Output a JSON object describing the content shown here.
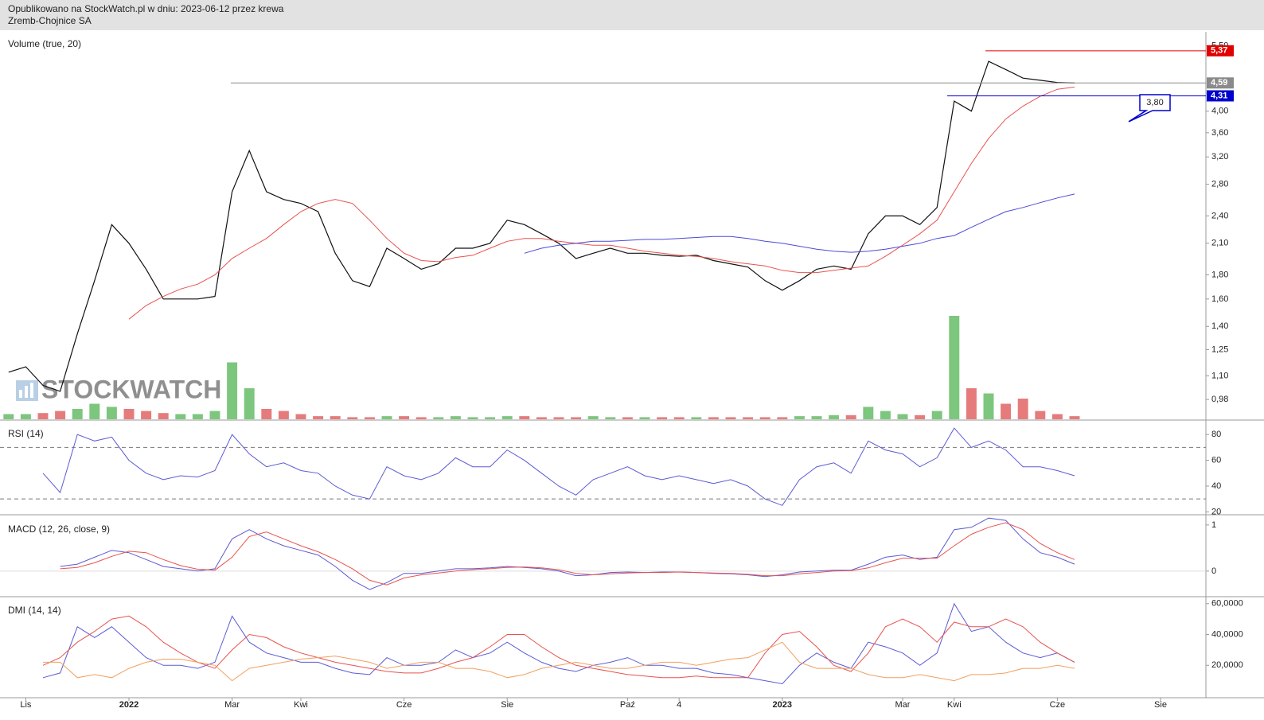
{
  "header": {
    "line1": "Opublikowano na StockWatch.pl w dniu: 2023-06-12 przez krewa",
    "line2": "Zremb-Chojnice SA"
  },
  "chart_data": [
    {
      "type": "line",
      "title": "Volume (true, 20)",
      "log_scale": true,
      "ylim": [
        0.89,
        5.89
      ],
      "yticks": [
        {
          "value": 5.5,
          "label": "5,50"
        },
        {
          "value": 4.0,
          "label": "4,00"
        },
        {
          "value": 3.6,
          "label": "3,60"
        },
        {
          "value": 3.2,
          "label": "3,20"
        },
        {
          "value": 2.8,
          "label": "2,80"
        },
        {
          "value": 2.4,
          "label": "2,40"
        },
        {
          "value": 2.1,
          "label": "2,10"
        },
        {
          "value": 1.8,
          "label": "1,80"
        },
        {
          "value": 1.6,
          "label": "1,60"
        },
        {
          "value": 1.4,
          "label": "1,40"
        },
        {
          "value": 1.25,
          "label": "1,25"
        },
        {
          "value": 1.1,
          "label": "1,10"
        },
        {
          "value": 0.98,
          "label": "0,98"
        }
      ],
      "series": [
        {
          "color": "#111111",
          "values": [
            1.12,
            1.15,
            1.05,
            1.02,
            1.35,
            1.75,
            2.3,
            2.1,
            1.85,
            1.6,
            1.6,
            1.6,
            1.62,
            2.7,
            3.3,
            2.7,
            2.6,
            2.55,
            2.45,
            2.0,
            1.75,
            1.7,
            2.05,
            1.95,
            1.85,
            1.9,
            2.05,
            2.05,
            2.1,
            2.35,
            2.3,
            2.2,
            2.1,
            1.95,
            2.0,
            2.05,
            2.0,
            2.0,
            1.98,
            1.97,
            1.98,
            1.93,
            1.9,
            1.87,
            1.75,
            1.67,
            1.75,
            1.85,
            1.88,
            1.85,
            2.2,
            2.4,
            2.4,
            2.3,
            2.5,
            4.2,
            4.0,
            5.1,
            4.9,
            4.7,
            4.65,
            4.6,
            4.59,
            null,
            null,
            null,
            null,
            null,
            null,
            null
          ]
        },
        {
          "color": "#e8534f",
          "values": [
            null,
            null,
            null,
            null,
            null,
            null,
            null,
            1.45,
            1.55,
            1.62,
            1.68,
            1.72,
            1.8,
            1.95,
            2.05,
            2.15,
            2.3,
            2.45,
            2.55,
            2.6,
            2.55,
            2.35,
            2.15,
            2.0,
            1.93,
            1.92,
            1.96,
            1.98,
            2.05,
            2.12,
            2.15,
            2.15,
            2.12,
            2.1,
            2.08,
            2.08,
            2.05,
            2.02,
            2.0,
            1.98,
            1.97,
            1.95,
            1.92,
            1.9,
            1.88,
            1.84,
            1.82,
            1.82,
            1.84,
            1.86,
            1.88,
            1.97,
            2.08,
            2.2,
            2.35,
            2.7,
            3.1,
            3.5,
            3.85,
            4.1,
            4.3,
            4.45,
            4.5,
            null,
            null,
            null,
            null,
            null,
            null,
            null
          ]
        },
        {
          "color": "#4a4ad8",
          "values": [
            null,
            null,
            null,
            null,
            null,
            null,
            null,
            null,
            null,
            null,
            null,
            null,
            null,
            null,
            null,
            null,
            null,
            null,
            null,
            null,
            null,
            null,
            null,
            null,
            null,
            null,
            null,
            null,
            null,
            null,
            2.0,
            2.05,
            2.08,
            2.1,
            2.12,
            2.12,
            2.13,
            2.14,
            2.14,
            2.15,
            2.16,
            2.17,
            2.17,
            2.15,
            2.12,
            2.1,
            2.07,
            2.04,
            2.02,
            2.01,
            2.02,
            2.04,
            2.07,
            2.1,
            2.15,
            2.18,
            2.27,
            2.36,
            2.45,
            2.5,
            2.56,
            2.62,
            2.67,
            null,
            null,
            null,
            null,
            null,
            null,
            null
          ]
        }
      ],
      "levels": [
        {
          "value": 5.37,
          "label": "5,37",
          "color": "#e00000"
        },
        {
          "value": 4.59,
          "label": "4,59",
          "color": "#8a8a8a"
        },
        {
          "value": 4.31,
          "label": "4,31",
          "color": "#0000cc"
        }
      ],
      "annotation": {
        "value": 3.8,
        "label": "3,80",
        "color": "#0000cc"
      },
      "watermark": "STOCKWATCH"
    },
    {
      "type": "bar",
      "ylim": [
        0,
        100
      ],
      "up_color": "#5cb85c",
      "down_color": "#e05a5a",
      "values": [
        5,
        5,
        6,
        8,
        10,
        15,
        12,
        10,
        8,
        6,
        5,
        5,
        8,
        55,
        30,
        10,
        8,
        5,
        3,
        3,
        2,
        2,
        3,
        3,
        2,
        2,
        3,
        2,
        2,
        3,
        3,
        2,
        2,
        2,
        3,
        2,
        2,
        2,
        2,
        2,
        2,
        2,
        2,
        2,
        2,
        2,
        3,
        3,
        4,
        4,
        12,
        8,
        5,
        4,
        8,
        100,
        30,
        25,
        15,
        20,
        8,
        5,
        3,
        null,
        null,
        null,
        null,
        null,
        null,
        null
      ]
    },
    {
      "type": "line",
      "title": "RSI (14)",
      "ylim": [
        19,
        90
      ],
      "yticks": [
        20,
        40,
        60,
        80
      ],
      "levels": [
        30,
        70
      ],
      "series": [
        {
          "color": "#5b5bd6",
          "values": [
            null,
            null,
            50,
            35,
            80,
            75,
            78,
            60,
            50,
            45,
            48,
            47,
            52,
            80,
            65,
            55,
            58,
            52,
            50,
            40,
            33,
            30,
            55,
            48,
            45,
            50,
            62,
            55,
            55,
            68,
            60,
            50,
            40,
            33,
            45,
            50,
            55,
            48,
            45,
            48,
            45,
            42,
            45,
            40,
            30,
            25,
            45,
            55,
            58,
            50,
            75,
            68,
            65,
            55,
            62,
            85,
            70,
            75,
            68,
            55,
            55,
            52,
            48,
            null,
            null,
            null,
            null,
            null,
            null,
            null
          ]
        }
      ]
    },
    {
      "type": "line",
      "title": "MACD (12, 26, close, 9)",
      "ylim": [
        -0.52,
        1.17
      ],
      "yticks": [
        0,
        1
      ],
      "series": [
        {
          "color": "#5b5bd6",
          "values": [
            null,
            null,
            null,
            0.1,
            0.15,
            0.3,
            0.45,
            0.4,
            0.25,
            0.1,
            0.05,
            0,
            0.05,
            0.7,
            0.9,
            0.7,
            0.55,
            0.45,
            0.35,
            0.1,
            -0.2,
            -0.4,
            -0.25,
            -0.05,
            -0.05,
            0,
            0.05,
            0.05,
            0.07,
            0.1,
            0.08,
            0.05,
            0,
            -0.1,
            -0.08,
            -0.03,
            -0.02,
            -0.03,
            -0.02,
            -0.02,
            -0.03,
            -0.05,
            -0.06,
            -0.08,
            -0.12,
            -0.08,
            -0.02,
            0,
            0.02,
            0.02,
            0.15,
            0.3,
            0.35,
            0.25,
            0.3,
            0.9,
            0.95,
            1.15,
            1.1,
            0.7,
            0.4,
            0.3,
            0.15,
            null,
            null,
            null,
            null,
            null,
            null,
            null
          ]
        },
        {
          "color": "#e8534f",
          "values": [
            null,
            null,
            null,
            0.05,
            0.08,
            0.18,
            0.32,
            0.43,
            0.4,
            0.25,
            0.12,
            0.04,
            0.02,
            0.3,
            0.75,
            0.85,
            0.7,
            0.55,
            0.42,
            0.25,
            0.05,
            -0.2,
            -0.3,
            -0.15,
            -0.08,
            -0.04,
            0,
            0.03,
            0.05,
            0.08,
            0.09,
            0.07,
            0.03,
            -0.05,
            -0.08,
            -0.06,
            -0.04,
            -0.03,
            -0.03,
            -0.02,
            -0.03,
            -0.04,
            -0.05,
            -0.07,
            -0.1,
            -0.1,
            -0.06,
            -0.03,
            0,
            0.01,
            0.07,
            0.18,
            0.28,
            0.28,
            0.28,
            0.55,
            0.8,
            0.95,
            1.05,
            0.9,
            0.6,
            0.4,
            0.25,
            null,
            null,
            null,
            null,
            null,
            null,
            null
          ]
        }
      ]
    },
    {
      "type": "line",
      "title": "DMI (14, 14)",
      "ylim": [
        0,
        63.5
      ],
      "yticks": [
        {
          "value": 60,
          "label": "60,0000"
        },
        {
          "value": 40,
          "label": "40,0000"
        },
        {
          "value": 20,
          "label": "20,0000"
        }
      ],
      "categories": [
        null,
        "Lis",
        null,
        null,
        null,
        null,
        null,
        "2022",
        null,
        null,
        null,
        null,
        null,
        "Mar",
        null,
        null,
        null,
        "Kwi",
        null,
        null,
        null,
        null,
        null,
        "Cze",
        null,
        null,
        null,
        null,
        null,
        "Sie",
        null,
        null,
        null,
        null,
        null,
        null,
        "Paź",
        null,
        null,
        "4",
        null,
        null,
        null,
        null,
        null,
        "2023",
        null,
        null,
        null,
        null,
        null,
        null,
        "Mar",
        null,
        null,
        "Kwi",
        null,
        null,
        null,
        null,
        null,
        "Cze",
        null,
        null,
        null,
        null,
        null,
        "Sie",
        null,
        null
      ],
      "series": [
        {
          "color": "#5b5bd6",
          "values": [
            null,
            null,
            12,
            15,
            45,
            38,
            45,
            35,
            25,
            20,
            20,
            18,
            22,
            52,
            35,
            28,
            25,
            22,
            22,
            18,
            15,
            14,
            25,
            20,
            20,
            22,
            30,
            25,
            28,
            35,
            28,
            22,
            18,
            16,
            20,
            22,
            25,
            20,
            20,
            18,
            18,
            15,
            14,
            12,
            10,
            8,
            20,
            28,
            22,
            18,
            35,
            32,
            28,
            20,
            28,
            60,
            42,
            45,
            35,
            28,
            25,
            28,
            22,
            null,
            null,
            null,
            null,
            null,
            null,
            null
          ]
        },
        {
          "color": "#e8534f",
          "values": [
            null,
            null,
            20,
            25,
            35,
            42,
            50,
            52,
            45,
            35,
            28,
            22,
            18,
            30,
            40,
            38,
            32,
            28,
            25,
            22,
            20,
            18,
            16,
            15,
            15,
            18,
            22,
            25,
            32,
            40,
            40,
            32,
            25,
            20,
            18,
            16,
            14,
            13,
            12,
            12,
            13,
            12,
            12,
            12,
            28,
            40,
            42,
            32,
            20,
            16,
            28,
            45,
            50,
            45,
            35,
            48,
            45,
            45,
            50,
            45,
            35,
            28,
            22,
            null,
            null,
            null,
            null,
            null,
            null,
            null
          ]
        },
        {
          "color": "#f0a060",
          "values": [
            null,
            null,
            22,
            22,
            12,
            14,
            12,
            18,
            22,
            24,
            24,
            22,
            20,
            10,
            18,
            20,
            22,
            24,
            25,
            26,
            24,
            22,
            18,
            20,
            22,
            22,
            18,
            18,
            16,
            12,
            14,
            18,
            20,
            22,
            20,
            18,
            18,
            20,
            22,
            22,
            20,
            22,
            24,
            25,
            30,
            35,
            22,
            18,
            18,
            18,
            14,
            12,
            12,
            14,
            12,
            10,
            14,
            14,
            15,
            18,
            18,
            20,
            18,
            null,
            null,
            null,
            null,
            null,
            null,
            null
          ]
        }
      ]
    }
  ]
}
